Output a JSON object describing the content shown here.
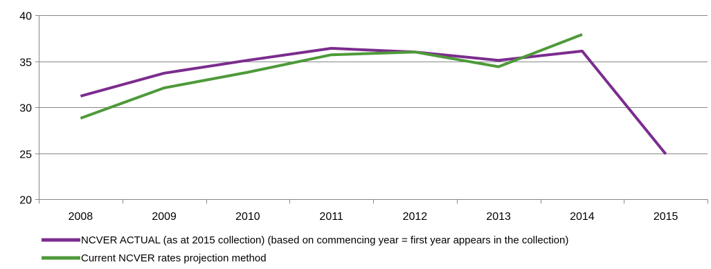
{
  "chart_data": {
    "type": "line",
    "title": "",
    "xlabel": "",
    "ylabel": "",
    "categories": [
      "2008",
      "2009",
      "2010",
      "2011",
      "2012",
      "2013",
      "2014",
      "2015"
    ],
    "ylim": [
      20,
      40
    ],
    "yticks": [
      20,
      25,
      30,
      35,
      40
    ],
    "grid": true,
    "legend_position": "bottom",
    "series": [
      {
        "name": "NCVER ACTUAL (as at 2015 collection) (based on commencing year = first year appears in the collection)",
        "color": "#7B2C8E",
        "values": [
          31.2,
          33.7,
          35.1,
          36.4,
          36.0,
          35.1,
          36.1,
          24.9
        ]
      },
      {
        "name": "Current NCVER rates projection method",
        "color": "#4E9A3A",
        "values": [
          28.8,
          32.1,
          33.8,
          35.7,
          36.0,
          34.4,
          37.9,
          null
        ]
      }
    ]
  }
}
